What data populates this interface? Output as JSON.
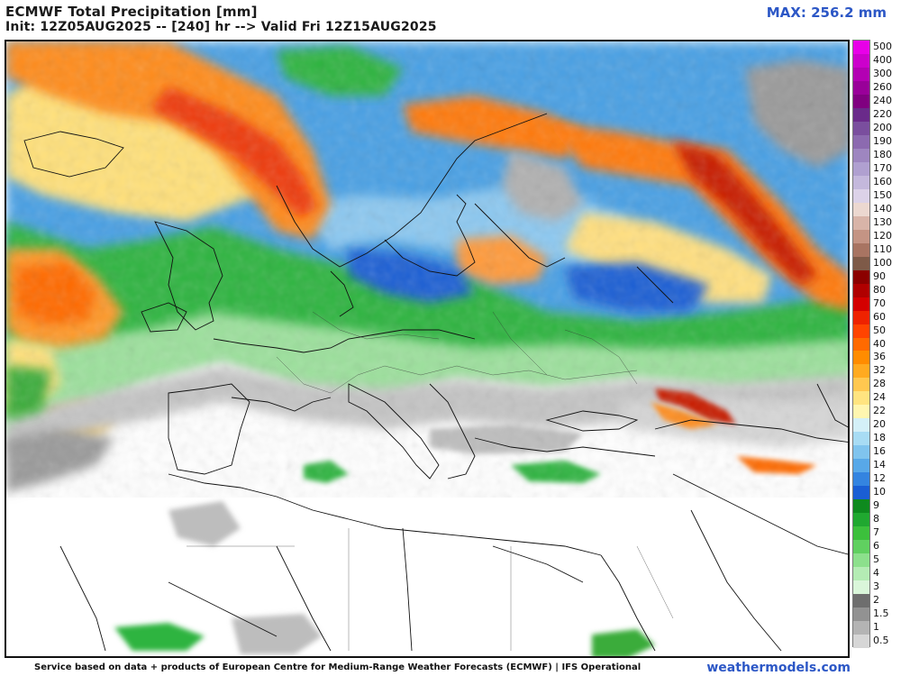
{
  "header": {
    "title": "ECMWF Total Precipitation [mm]",
    "subtitle": "Init: 12Z05AUG2025 -- [240] hr --> Valid Fri 12Z15AUG2025",
    "max_label": "MAX: 256.2 mm"
  },
  "legend": {
    "levels": [
      {
        "label": "500",
        "color": "#e800e8"
      },
      {
        "label": "400",
        "color": "#cc00cc"
      },
      {
        "label": "300",
        "color": "#b300b3"
      },
      {
        "label": "260",
        "color": "#990099"
      },
      {
        "label": "240",
        "color": "#800080"
      },
      {
        "label": "220",
        "color": "#6a2a8a"
      },
      {
        "label": "200",
        "color": "#7a4e9e"
      },
      {
        "label": "190",
        "color": "#8c6ab0"
      },
      {
        "label": "180",
        "color": "#9e86c0"
      },
      {
        "label": "170",
        "color": "#b0a0d0"
      },
      {
        "label": "160",
        "color": "#c4b8dc"
      },
      {
        "label": "150",
        "color": "#dcd2e8"
      },
      {
        "label": "140",
        "color": "#ecd8d0"
      },
      {
        "label": "130",
        "color": "#d8b4a8"
      },
      {
        "label": "120",
        "color": "#c49484"
      },
      {
        "label": "110",
        "color": "#a87462"
      },
      {
        "label": "100",
        "color": "#7e5a48"
      },
      {
        "label": "90",
        "color": "#8b0000"
      },
      {
        "label": "80",
        "color": "#b00000"
      },
      {
        "label": "70",
        "color": "#d40000"
      },
      {
        "label": "60",
        "color": "#ee2200"
      },
      {
        "label": "50",
        "color": "#ff4400"
      },
      {
        "label": "40",
        "color": "#ff6a00"
      },
      {
        "label": "36",
        "color": "#ff8c00"
      },
      {
        "label": "32",
        "color": "#ffaa20"
      },
      {
        "label": "28",
        "color": "#ffc850"
      },
      {
        "label": "24",
        "color": "#ffe480"
      },
      {
        "label": "22",
        "color": "#fff6b0"
      },
      {
        "label": "20",
        "color": "#d4f0f8"
      },
      {
        "label": "18",
        "color": "#a8dcf4"
      },
      {
        "label": "16",
        "color": "#80c4ee"
      },
      {
        "label": "14",
        "color": "#58a8e8"
      },
      {
        "label": "12",
        "color": "#3484e0"
      },
      {
        "label": "10",
        "color": "#1a5ed4"
      },
      {
        "label": "9",
        "color": "#0e8a1e"
      },
      {
        "label": "8",
        "color": "#20a830"
      },
      {
        "label": "7",
        "color": "#3cc03c"
      },
      {
        "label": "6",
        "color": "#60d060"
      },
      {
        "label": "5",
        "color": "#8ce08c"
      },
      {
        "label": "4",
        "color": "#b4ecb4"
      },
      {
        "label": "3",
        "color": "#daf6da"
      },
      {
        "label": "2",
        "color": "#6e6e6e"
      },
      {
        "label": "1.5",
        "color": "#929292"
      },
      {
        "label": "1",
        "color": "#b4b4b4"
      },
      {
        "label": "0.5",
        "color": "#d6d6d6"
      }
    ]
  },
  "footer": {
    "credit": "Service based on data + products of European Centre for Medium-Range Weather Forecasts (ECMWF) | IFS Operational",
    "brand": "weathermodels.com"
  }
}
